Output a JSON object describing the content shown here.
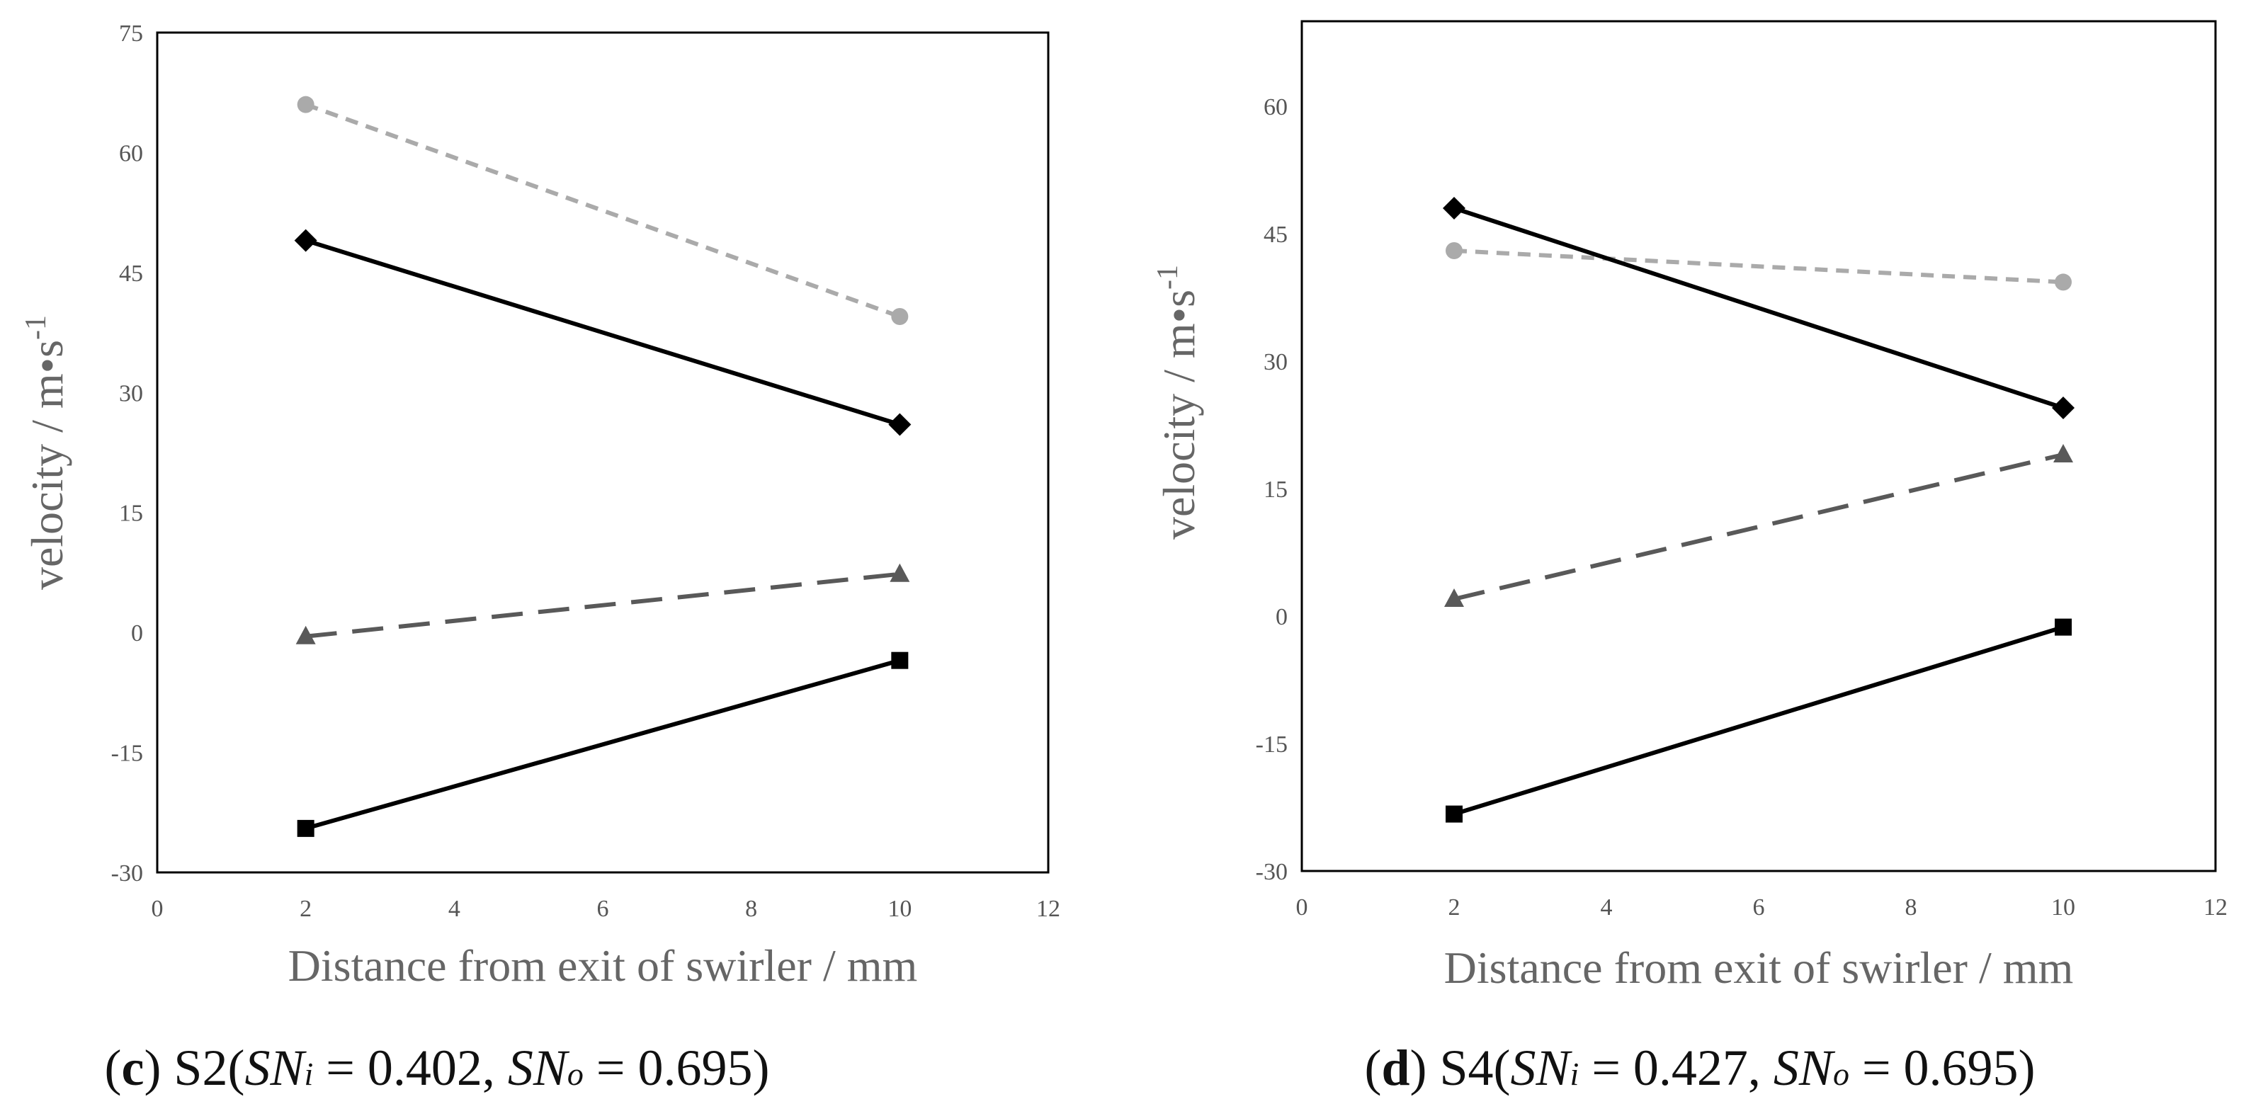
{
  "figure": {
    "series_styles": [
      {
        "name": "circle-series",
        "color": "#aaaaaa",
        "marker": "circle",
        "dash": "short-dash"
      },
      {
        "name": "diamond-series",
        "color": "#000000",
        "marker": "diamond",
        "dash": "solid"
      },
      {
        "name": "triangle-series",
        "color": "#595959",
        "marker": "triangle",
        "dash": "long-dash"
      },
      {
        "name": "square-series",
        "color": "#000000",
        "marker": "square",
        "dash": "solid"
      }
    ]
  },
  "chart_data": [
    {
      "type": "line",
      "panel": "c",
      "caption": {
        "letter": "c",
        "prefix": " S2(",
        "sni_label": "SN",
        "sni_sub": "i",
        "sni_val": " = 0.402, ",
        "sno_label": "SN",
        "sno_sub": "o",
        "sno_val": " = 0.695)"
      },
      "xlabel": "Distance from exit of swirler / mm",
      "ylabel": "velocity / m•s",
      "ylabel_sup": "-1",
      "xlim": [
        0,
        12
      ],
      "ylim": [
        -30,
        75
      ],
      "xticks": [
        0,
        2,
        4,
        6,
        8,
        10,
        12
      ],
      "yticks": [
        -30,
        -15,
        0,
        15,
        30,
        45,
        60,
        75
      ],
      "grid": false,
      "x": [
        2,
        10
      ],
      "series": [
        {
          "values": [
            66,
            39.5
          ]
        },
        {
          "values": [
            49,
            26
          ]
        },
        {
          "values": [
            -0.5,
            7.3
          ]
        },
        {
          "values": [
            -24.5,
            -3.5
          ]
        }
      ]
    },
    {
      "type": "line",
      "panel": "d",
      "caption": {
        "letter": "d",
        "prefix": " S4(",
        "sni_label": "SN",
        "sni_sub": "i",
        "sni_val": " = 0.427, ",
        "sno_label": "SN",
        "sno_sub": "o",
        "sno_val": " = 0.695)"
      },
      "xlabel": "Distance from exit of swirler / mm",
      "ylabel": "velocity / m•s",
      "ylabel_sup": "-1",
      "xlim": [
        0,
        12
      ],
      "ylim": [
        -30,
        70
      ],
      "xticks": [
        0,
        2,
        4,
        6,
        8,
        10,
        12
      ],
      "yticks": [
        -30,
        -15,
        0,
        15,
        30,
        45,
        60
      ],
      "grid": false,
      "x": [
        2,
        10
      ],
      "series": [
        {
          "values": [
            43,
            39.3
          ]
        },
        {
          "values": [
            48,
            24.5
          ]
        },
        {
          "values": [
            2,
            19
          ]
        },
        {
          "values": [
            -23.3,
            -1.3
          ]
        }
      ]
    }
  ]
}
